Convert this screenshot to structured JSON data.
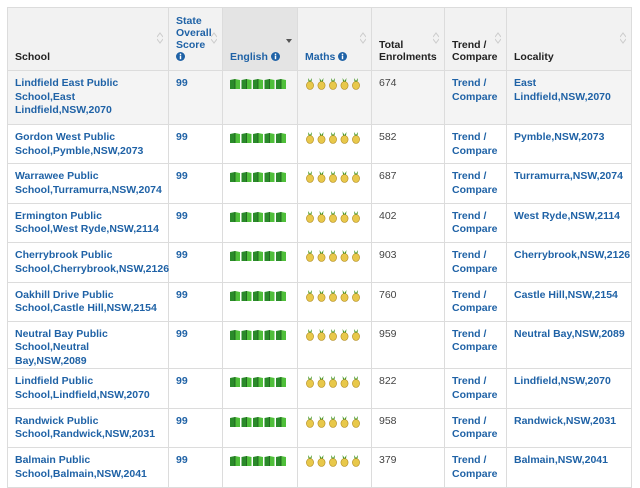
{
  "table": {
    "columns": [
      "School",
      "State Overall Score",
      "English",
      "Maths",
      "Total Enrolments",
      "Trend / Compare",
      "Locality"
    ],
    "rows": [
      [
        "Lindfield East Public School,East Lindfield,NSW,2070",
        99,
        674,
        "Trend / Compare",
        "East Lindfield,NSW,2070"
      ],
      [
        "Gordon West Public School,Pymble,NSW,2073",
        99,
        582,
        "Trend / Compare",
        "Pymble,NSW,2073"
      ],
      [
        "Warrawee Public School,Turramurra,NSW,2074",
        99,
        687,
        "Trend / Compare",
        "Turramurra,NSW,2074"
      ],
      [
        "Ermington Public School,West Ryde,NSW,2114",
        99,
        402,
        "Trend / Compare",
        "West Ryde,NSW,2114"
      ],
      [
        "Cherrybrook Public School,Cherrybrook,NSW,2126",
        99,
        903,
        "Trend / Compare",
        "Cherrybrook,NSW,2126"
      ],
      [
        "Oakhill Drive Public School,Castle Hill,NSW,2154",
        99,
        760,
        "Trend / Compare",
        "Castle Hill,NSW,2154"
      ],
      [
        "Neutral Bay Public School,Neutral Bay,NSW,2089",
        99,
        959,
        "Trend / Compare",
        "Neutral Bay,NSW,2089"
      ],
      [
        "Lindfield Public School,Lindfield,NSW,2070",
        99,
        822,
        "Trend / Compare",
        "Lindfield,NSW,2070"
      ],
      [
        "Randwick Public School,Randwick,NSW,2031",
        99,
        958,
        "Trend / Compare",
        "Randwick,NSW,2031"
      ],
      [
        "Balmain Public School,Balmain,NSW,2041",
        99,
        379,
        "Trend / Compare",
        "Balmain,NSW,2041"
      ]
    ]
  }
}
